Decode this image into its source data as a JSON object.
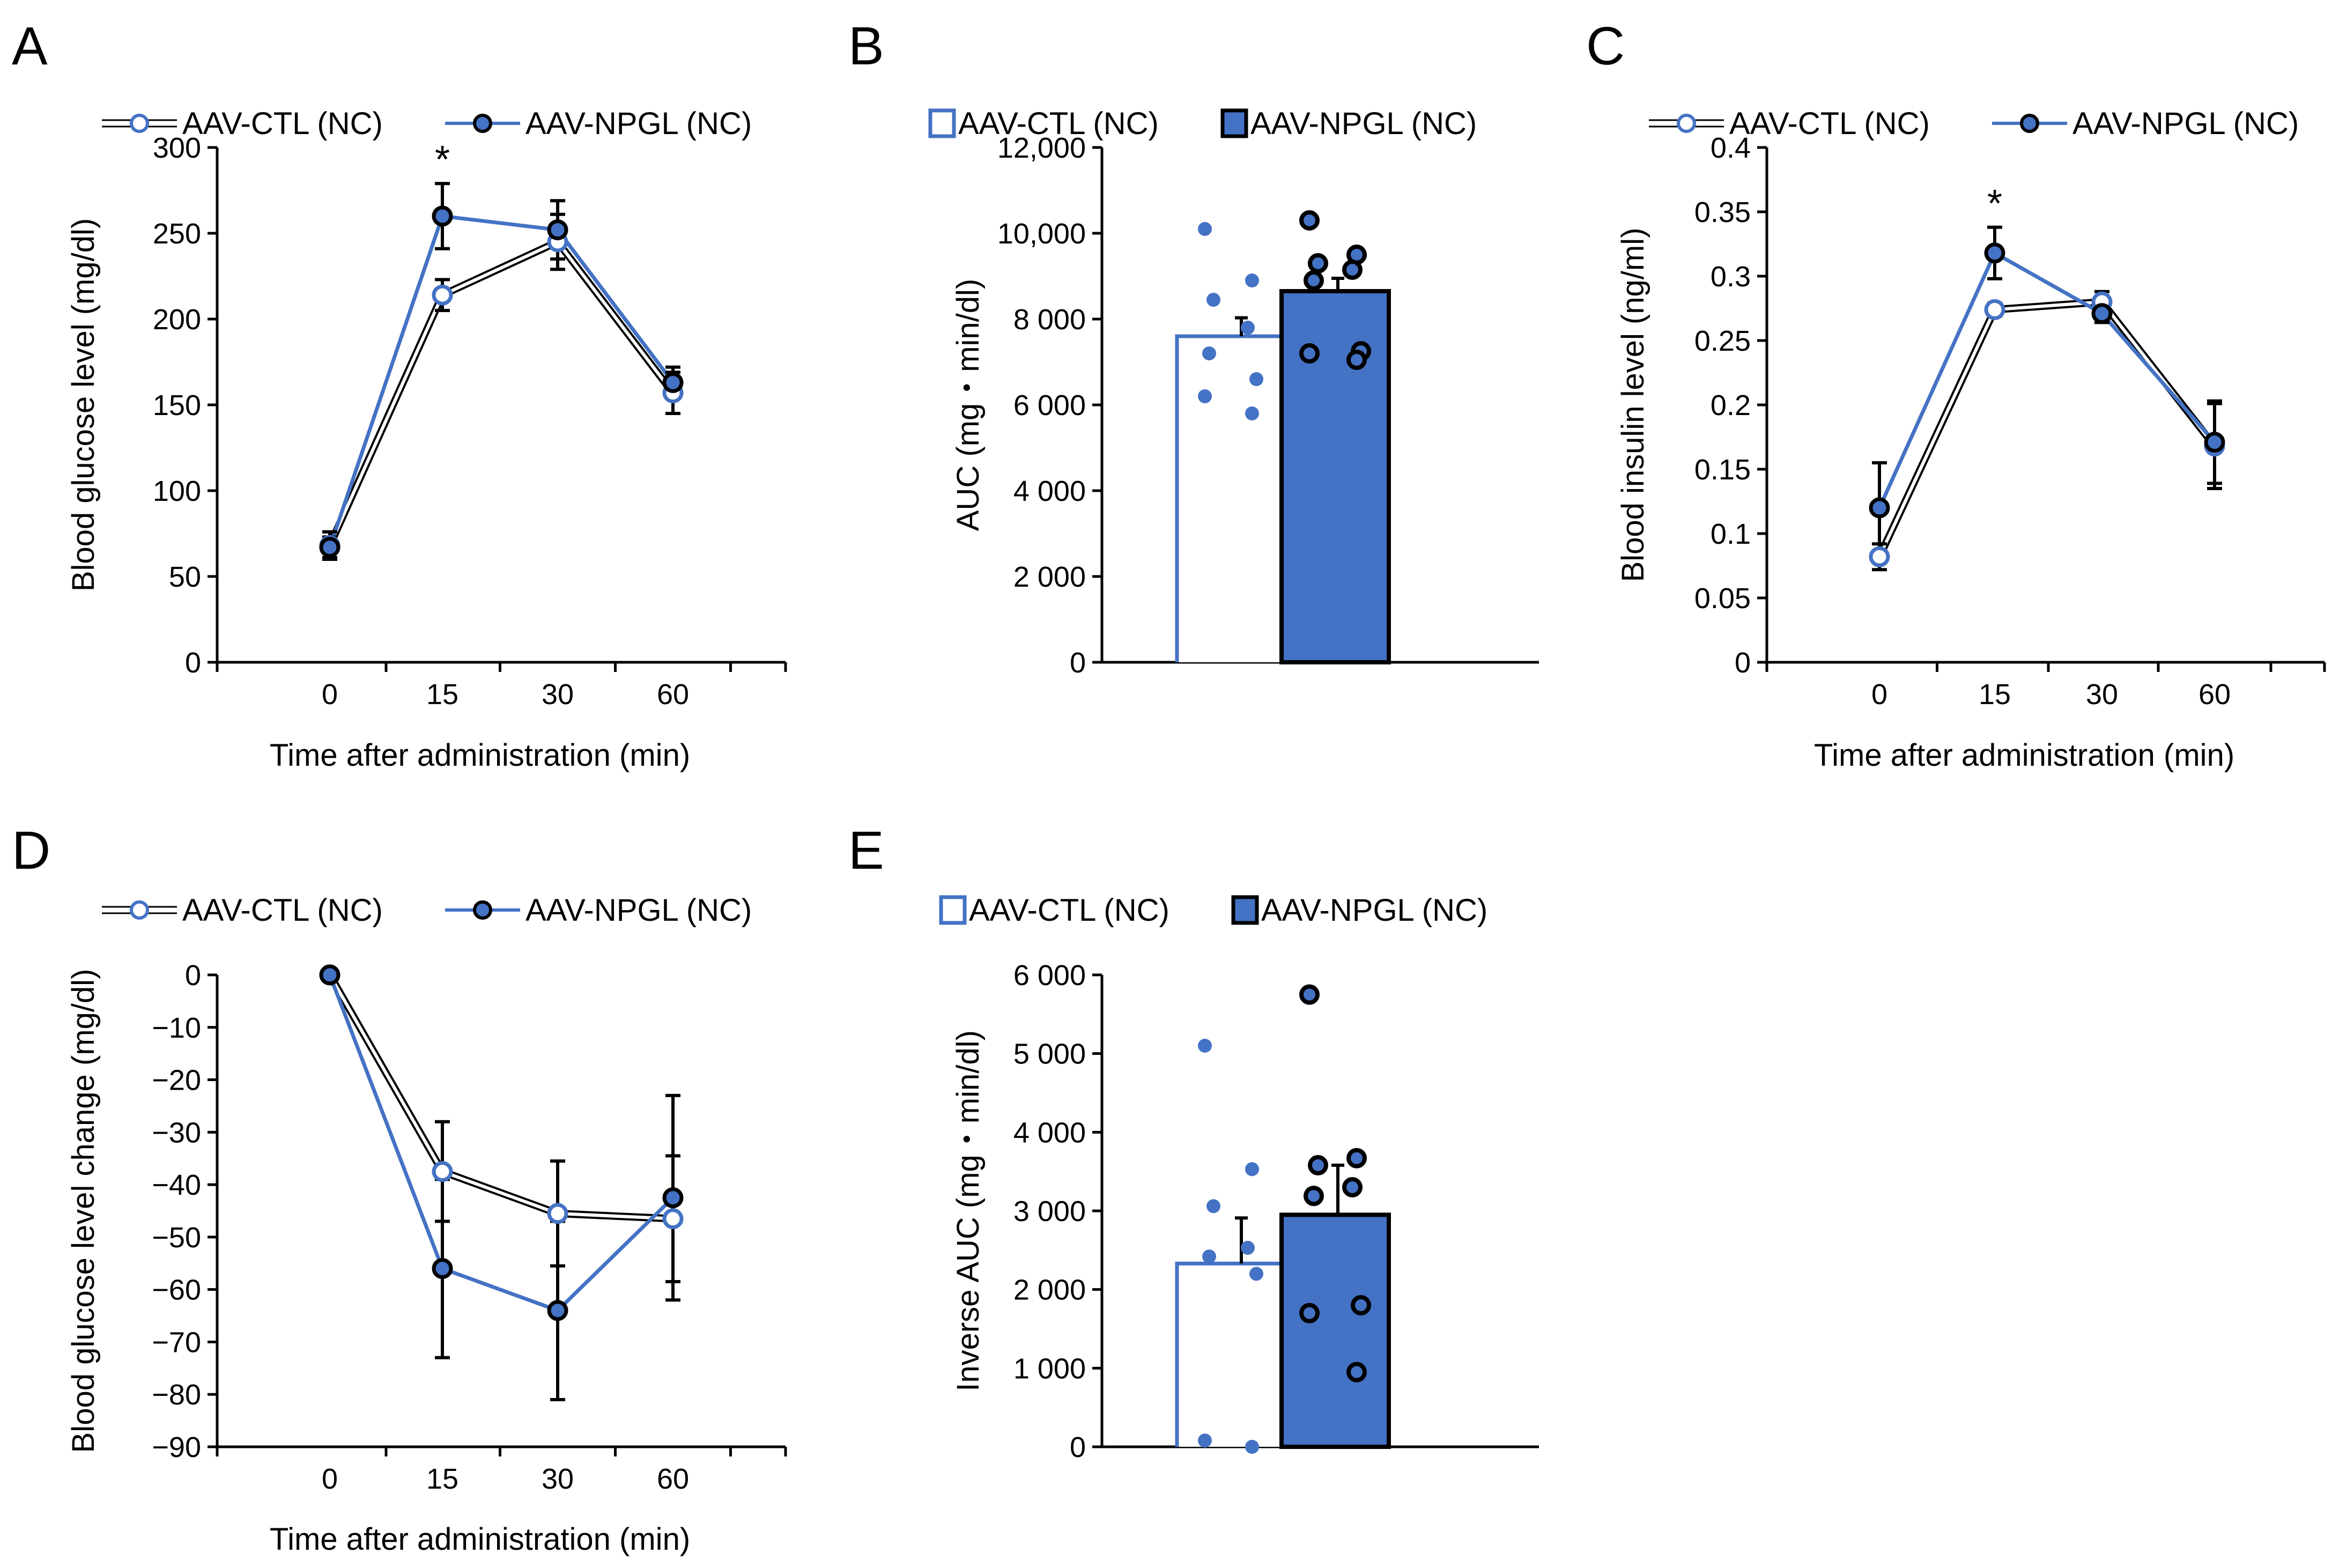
{
  "colors": {
    "ctl": "#4472C4",
    "npgl_fill": "#4472C4",
    "npgl_edge": "#000000",
    "axis": "#000000"
  },
  "panels": [
    {
      "id": "A",
      "letter": "A",
      "type": "line",
      "legend": [
        "AAV-CTL (NC)",
        "AAV-NPGL (NC)"
      ],
      "ylabel": "Blood glucose level (mg/dl)",
      "xlabel": "Time after administration (min)",
      "x_categories": [
        "0",
        "15",
        "30",
        "60"
      ],
      "ylim": [
        0,
        300
      ],
      "ystep": 50,
      "ytick_labels": [
        "0",
        "50",
        "100",
        "150",
        "200",
        "250",
        "300"
      ],
      "series": [
        {
          "name": "AAV-CTL (NC)",
          "values": [
            68,
            214,
            245,
            157
          ],
          "errors": [
            8,
            9,
            16,
            12
          ]
        },
        {
          "name": "AAV-NPGL (NC)",
          "values": [
            67,
            260,
            252,
            163
          ],
          "errors": [
            6,
            19,
            17,
            9
          ]
        }
      ],
      "annotations": [
        {
          "category": "15",
          "text": "*"
        }
      ]
    },
    {
      "id": "B",
      "letter": "B",
      "type": "bar",
      "legend": [
        "AAV-CTL (NC)",
        "AAV-NPGL (NC)"
      ],
      "ylabel": "AUC (mg・min/dl)",
      "ylim": [
        0,
        12000
      ],
      "ystep": 2000,
      "ytick_labels": [
        "0",
        "2 000",
        "4 000",
        "6 000",
        "8 000",
        "10,000",
        "12,000"
      ],
      "bars": [
        {
          "name": "AAV-CTL (NC)",
          "value": 7600,
          "error": 430,
          "points": [
            10100,
            8900,
            8450,
            7800,
            7200,
            6600,
            6200,
            5800
          ]
        },
        {
          "name": "AAV-NPGL (NC)",
          "value": 8650,
          "error": 300,
          "points": [
            10300,
            9500,
            9300,
            9150,
            8900,
            7250,
            7200,
            7050
          ]
        }
      ]
    },
    {
      "id": "C",
      "letter": "C",
      "type": "line",
      "legend": [
        "AAV-CTL (NC)",
        "AAV-NPGL (NC)"
      ],
      "ylabel": "Blood insulin level (ng/ml)",
      "xlabel": "Time after administration (min)",
      "x_categories": [
        "0",
        "15",
        "30",
        "60"
      ],
      "ylim": [
        0,
        0.4
      ],
      "ystep": 0.05,
      "ytick_labels": [
        "0",
        "0.05",
        "0.1",
        "0.15",
        "0.2",
        "0.25",
        "0.3",
        "0.35",
        "0.4"
      ],
      "series": [
        {
          "name": "AAV-CTL (NC)",
          "values": [
            0.082,
            0.274,
            0.28,
            0.168
          ],
          "errors": [
            0.01,
            0.005,
            0.008,
            0.033
          ]
        },
        {
          "name": "AAV-NPGL (NC)",
          "values": [
            0.12,
            0.318,
            0.271,
            0.171
          ],
          "errors": [
            0.035,
            0.02,
            0.007,
            0.032
          ]
        }
      ],
      "annotations": [
        {
          "category": "15",
          "text": "*"
        }
      ]
    },
    {
      "id": "D",
      "letter": "D",
      "type": "line",
      "legend": [
        "AAV-CTL (NC)",
        "AAV-NPGL (NC)"
      ],
      "ylabel": "Blood glucose level change (mg/dl)",
      "xlabel": "Time after administration (min)",
      "x_categories": [
        "0",
        "15",
        "30",
        "60"
      ],
      "ylim": [
        -90,
        0
      ],
      "ystep": 10,
      "ytick_labels": [
        "−90",
        "−80",
        "−70",
        "−60",
        "−50",
        "−40",
        "−30",
        "−20",
        "−10",
        "0"
      ],
      "series": [
        {
          "name": "AAV-CTL (NC)",
          "values": [
            0,
            -37.5,
            -45.5,
            -46.5
          ],
          "errors": [
            0,
            9.5,
            10,
            12
          ]
        },
        {
          "name": "AAV-NPGL (NC)",
          "values": [
            0,
            -56,
            -64,
            -42.5
          ],
          "errors": [
            0,
            17,
            17,
            19.5
          ]
        }
      ],
      "annotations": []
    },
    {
      "id": "E",
      "letter": "E",
      "type": "bar",
      "legend": [
        "AAV-CTL (NC)",
        "AAV-NPGL (NC)"
      ],
      "ylabel": "Inverse AUC (mg・min/dl)",
      "ylim": [
        0,
        6000
      ],
      "ystep": 1000,
      "ytick_labels": [
        "0",
        "1 000",
        "2 000",
        "3 000",
        "4 000",
        "5 000",
        "6 000"
      ],
      "bars": [
        {
          "name": "AAV-CTL (NC)",
          "value": 2330,
          "error": 580,
          "points": [
            5100,
            3530,
            3060,
            2530,
            2420,
            2200,
            80,
            0
          ]
        },
        {
          "name": "AAV-NPGL (NC)",
          "value": 2950,
          "error": 630,
          "points": [
            5750,
            3670,
            3580,
            3300,
            3190,
            1800,
            1700,
            950
          ]
        }
      ]
    }
  ]
}
